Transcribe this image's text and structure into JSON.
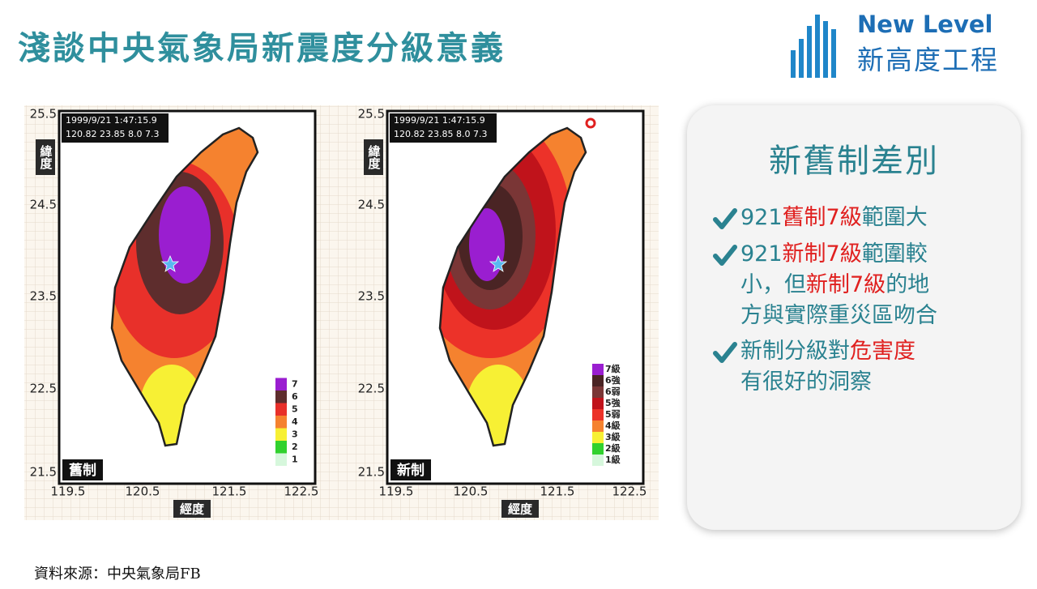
{
  "header": {
    "title": "淺談中央氣象局新震度分級意義",
    "logo": {
      "line1": "New Level",
      "line2": "新高度工程"
    }
  },
  "maps": [
    {
      "info": [
        "1999/9/21 1:47:15.9",
        "120.82 23.85 8.0 7.3"
      ],
      "label": "舊制",
      "y_axis_label": "緯度",
      "x_axis_label": "經度",
      "yticks": [
        "25.5",
        "24.5",
        "23.5",
        "22.5",
        "21.5"
      ],
      "xticks": [
        "119.5",
        "120.5",
        "121.5",
        "122.5"
      ],
      "legend": [
        {
          "label": "7",
          "color": "#9a1ed0"
        },
        {
          "label": "6",
          "color": "#5e2d2d"
        },
        {
          "label": "5",
          "color": "#e8302a"
        },
        {
          "label": "4",
          "color": "#f5822f"
        },
        {
          "label": "3",
          "color": "#f7f034"
        },
        {
          "label": "2",
          "color": "#31d12e"
        },
        {
          "label": "1",
          "color": "#d6f7dc"
        }
      ]
    },
    {
      "info": [
        "1999/9/21 1:47:15.9",
        "120.82 23.85 8.0 7.3"
      ],
      "label": "新制",
      "y_axis_label": "緯度",
      "x_axis_label": "經度",
      "yticks": [
        "25.5",
        "24.5",
        "23.5",
        "22.5",
        "21.5"
      ],
      "xticks": [
        "119.5",
        "120.5",
        "121.5",
        "122.5"
      ],
      "legend": [
        {
          "label": "7級",
          "color": "#9a1ed0"
        },
        {
          "label": "6強",
          "color": "#4a2424"
        },
        {
          "label": "6弱",
          "color": "#7a3636"
        },
        {
          "label": "5強",
          "color": "#c0131b"
        },
        {
          "label": "5弱",
          "color": "#ec3229"
        },
        {
          "label": "4級",
          "color": "#f5822f"
        },
        {
          "label": "3級",
          "color": "#f7f034"
        },
        {
          "label": "2級",
          "color": "#31d12e"
        },
        {
          "label": "1級",
          "color": "#d6f7dc"
        }
      ]
    }
  ],
  "panel": {
    "title": "新舊制差別",
    "items": [
      [
        [
          {
            "text": "921"
          },
          {
            "text": "舊制7級",
            "em": true
          },
          {
            "text": "範圍大"
          }
        ]
      ],
      [
        [
          {
            "text": "921"
          },
          {
            "text": "新制7級",
            "em": true
          },
          {
            "text": "範圍較"
          }
        ],
        [
          {
            "text": "小，但"
          },
          {
            "text": "新制7級",
            "em": true
          },
          {
            "text": "的地"
          }
        ],
        [
          {
            "text": "方與實際重災區吻合"
          }
        ]
      ],
      [
        [
          {
            "text": "新制分級對"
          },
          {
            "text": "危害度",
            "em": true
          }
        ],
        [
          {
            "text": "有很好的洞察"
          }
        ]
      ]
    ]
  },
  "source": "資料來源：中央氣象局FB"
}
